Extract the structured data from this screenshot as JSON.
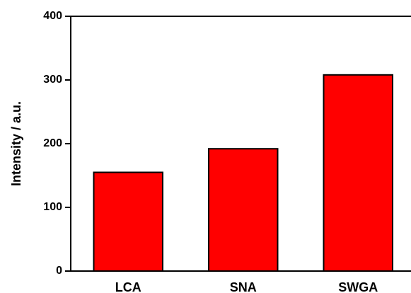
{
  "chart_data": {
    "type": "bar",
    "y_label": "Intensity / a.u.",
    "categories": [
      "LCA",
      "SNA",
      "SWGA"
    ],
    "values": [
      155,
      192,
      308
    ],
    "color": "#ff0000",
    "ylim": [
      0,
      400
    ],
    "yticks": [
      0,
      100,
      200,
      300,
      400
    ]
  }
}
